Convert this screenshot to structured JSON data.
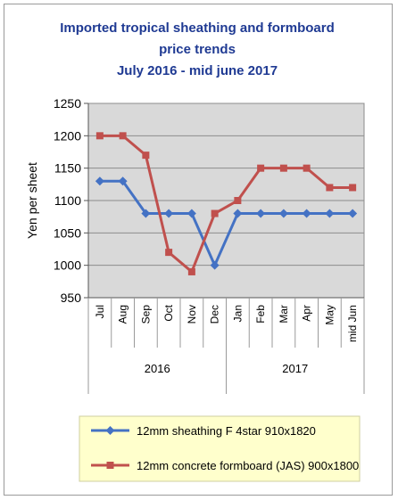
{
  "chart_data": {
    "type": "line",
    "title_lines": [
      "Imported tropical sheathing and formboard",
      "price trends",
      "July 2016 - mid june 2017"
    ],
    "ylabel": "Yen per sheet",
    "xlabel": "",
    "ylim": [
      950,
      1250
    ],
    "yticks": [
      950,
      1000,
      1050,
      1100,
      1150,
      1200,
      1250
    ],
    "categories": [
      "Jul",
      "Aug",
      "Sep",
      "Oct",
      "Nov",
      "Dec",
      "Jan",
      "Feb",
      "Mar",
      "Apr",
      "May",
      "mid Jun"
    ],
    "groups": [
      {
        "label": "2016",
        "start": 0,
        "end": 5
      },
      {
        "label": "2017",
        "start": 6,
        "end": 11
      }
    ],
    "grid": "horizontal",
    "legend_position": "bottom",
    "series": [
      {
        "name": "12mm sheathing F 4star 910x1820",
        "color": "#4472c4",
        "marker": "diamond",
        "values": [
          1130,
          1130,
          1080,
          1080,
          1080,
          1000,
          1080,
          1080,
          1080,
          1080,
          1080,
          1080
        ]
      },
      {
        "name": "12mm concrete formboard (JAS) 900x1800",
        "color": "#c0504d",
        "marker": "square",
        "values": [
          1200,
          1200,
          1170,
          1020,
          990,
          1080,
          1100,
          1150,
          1150,
          1150,
          1120,
          1120
        ]
      }
    ],
    "plot_background": "#d9d9d9",
    "legend_background": "#ffffcc"
  }
}
